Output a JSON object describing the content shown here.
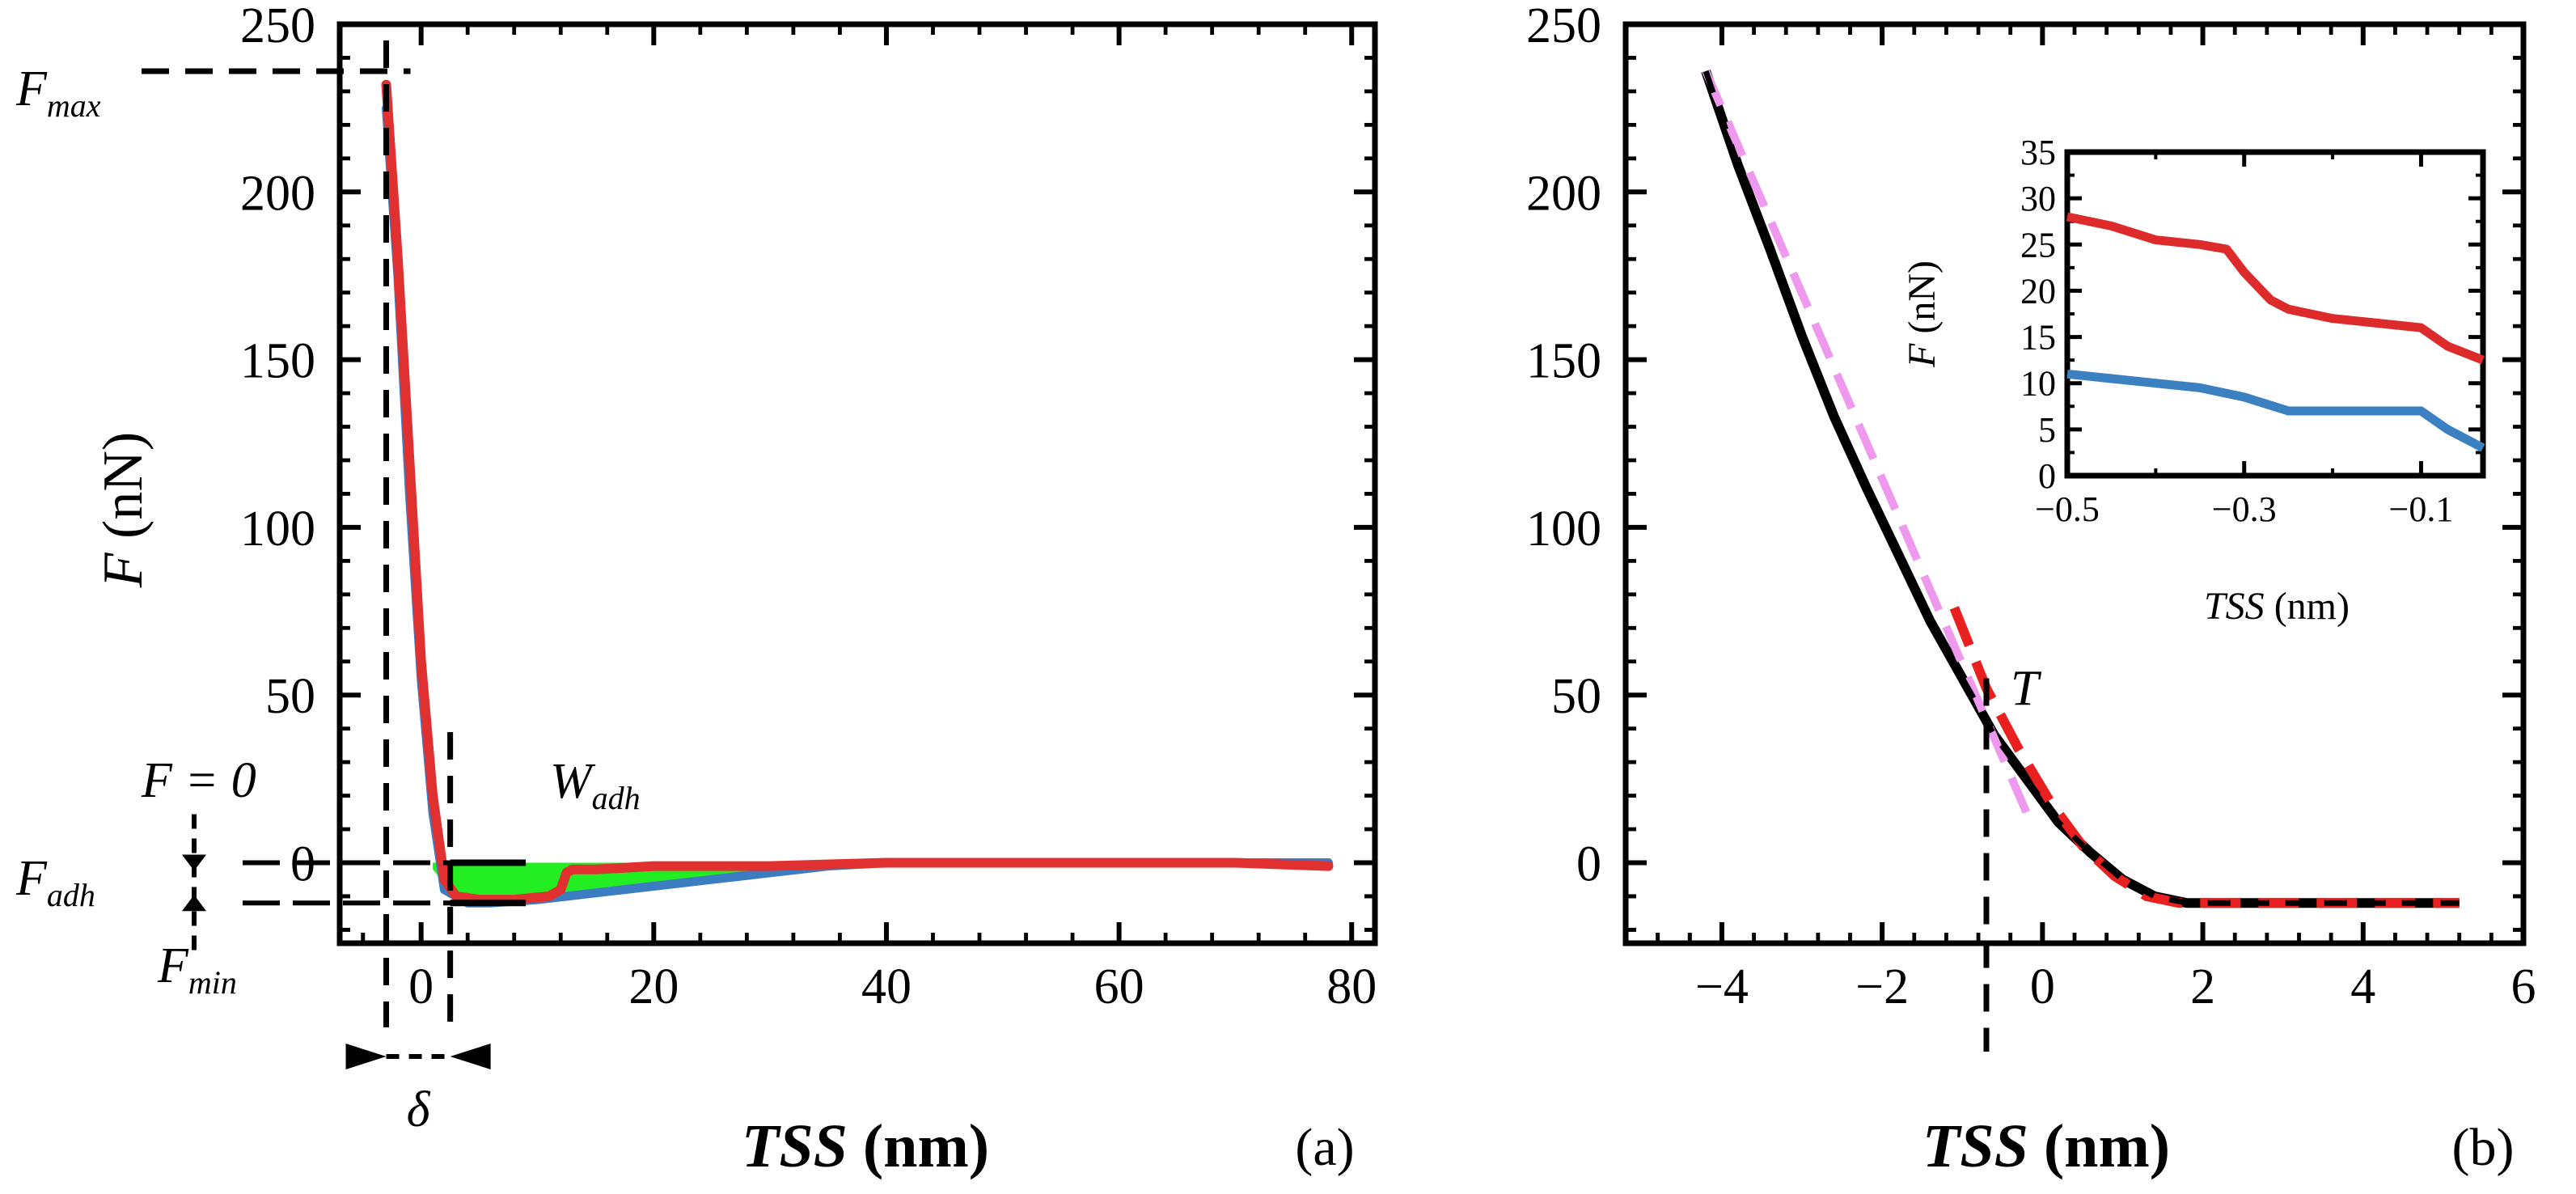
{
  "chart_data": [
    {
      "type": "line",
      "panel_label": "(a)",
      "xlabel": "TSS (nm)",
      "xlabel_parts": [
        "TSS",
        " (nm)"
      ],
      "ylabel": "F (nN)",
      "ylabel_parts": [
        "F",
        " (nN)"
      ],
      "xlim": [
        -7,
        82
      ],
      "ylim": [
        -24,
        250
      ],
      "x_ticks": [
        0,
        20,
        40,
        60,
        80
      ],
      "y_ticks": [
        0,
        50,
        100,
        150,
        200,
        250
      ],
      "series": [
        {
          "name": "approach (blue)",
          "color": "#3b7dc0",
          "x": [
            -3,
            -2,
            -1,
            0,
            1,
            2,
            4,
            6,
            10,
            15,
            20,
            25,
            30,
            35,
            40,
            50,
            60,
            70,
            78
          ],
          "y": [
            225,
            175,
            110,
            55,
            15,
            -8,
            -12,
            -12,
            -11,
            -9,
            -7,
            -5,
            -3,
            -1,
            0,
            0,
            0,
            0,
            0
          ]
        },
        {
          "name": "retract (red)",
          "color": "#e03030",
          "x": [
            -3,
            -2,
            -1,
            0,
            1,
            2,
            3,
            5,
            8,
            11,
            12,
            12.5,
            13,
            15,
            20,
            30,
            40,
            50,
            60,
            70,
            78
          ],
          "y": [
            232,
            180,
            120,
            60,
            20,
            -5,
            -10,
            -11,
            -11,
            -10,
            -8,
            -3,
            -2,
            -2,
            -1,
            -1,
            0,
            0,
            0,
            0,
            -1
          ]
        }
      ],
      "shaded_region": {
        "name": "W_adh area",
        "color": "#22ee22",
        "x": [
          1,
          3,
          6,
          10,
          15,
          20,
          25,
          30,
          35,
          38
        ],
        "y_low": [
          -2,
          -10,
          -11,
          -11,
          -8,
          -6,
          -4,
          -3,
          -1,
          0
        ]
      },
      "annotations": {
        "f_max": {
          "main": "F",
          "sub": "max",
          "y": 236
        },
        "f_adh": {
          "main": "F",
          "sub": "adh",
          "y": -12
        },
        "f_min": {
          "main": "F",
          "sub": "min"
        },
        "f_zero": "F = 0",
        "w_adh": {
          "main": "W",
          "sub": "adh"
        },
        "delta": "δ",
        "delta_x": [
          -3,
          2.5
        ]
      }
    },
    {
      "type": "line",
      "panel_label": "(b)",
      "xlabel": "TSS (nm)",
      "xlabel_parts": [
        "TSS",
        " (nm)"
      ],
      "xlim": [
        -5.2,
        6
      ],
      "ylim": [
        -24,
        250
      ],
      "x_ticks": [
        -4,
        -2,
        0,
        2,
        4,
        6
      ],
      "y_ticks": [
        0,
        50,
        100,
        150,
        200,
        250
      ],
      "series": [
        {
          "name": "measured (black)",
          "color": "#000000",
          "x": [
            -4.2,
            -3.8,
            -3.4,
            -3.0,
            -2.6,
            -2.2,
            -1.8,
            -1.4,
            -1.0,
            -0.6,
            -0.2,
            0.2,
            0.6,
            1.0,
            1.4,
            1.8,
            2.5,
            3.5,
            4.5,
            5.2
          ],
          "y": [
            236,
            208,
            183,
            157,
            133,
            112,
            92,
            72,
            55,
            38,
            25,
            12,
            3,
            -5,
            -10,
            -12,
            -12,
            -12,
            -12,
            -12
          ]
        },
        {
          "name": "linear fit (pink dashed)",
          "color": "#ee99ee",
          "x": [
            -4.2,
            -0.2
          ],
          "y": [
            236,
            15
          ]
        },
        {
          "name": "contact fit (red dashed)",
          "color": "#e82020",
          "x": [
            -1.1,
            -0.7,
            -0.3,
            0.1,
            0.5,
            0.9,
            1.3,
            1.7,
            2.5,
            3.5,
            4.5,
            5.2
          ],
          "y": [
            76,
            52,
            34,
            18,
            5,
            -4,
            -10,
            -12,
            -12,
            -12,
            -12,
            -12
          ]
        }
      ],
      "annotations": {
        "T": "T",
        "T_x": -0.7,
        "T_y": 40
      },
      "inset": {
        "xlabel": "TSS (nm)",
        "xlabel_parts": [
          "TSS",
          " (nm)"
        ],
        "ylabel": "F (nN)",
        "ylabel_parts": [
          "F",
          " (nN)"
        ],
        "xlim": [
          -0.5,
          -0.03
        ],
        "ylim": [
          0,
          35
        ],
        "x_ticks": [
          -0.5,
          -0.3,
          -0.1
        ],
        "x_tick_labels": [
          "−0.5",
          "−0.3",
          "−0.1"
        ],
        "y_ticks": [
          0,
          5,
          10,
          15,
          20,
          25,
          30,
          35
        ],
        "series": [
          {
            "name": "red",
            "color": "#dd2a2a",
            "x": [
              -0.5,
              -0.45,
              -0.4,
              -0.35,
              -0.32,
              -0.3,
              -0.27,
              -0.25,
              -0.2,
              -0.15,
              -0.1,
              -0.07,
              -0.03
            ],
            "y": [
              28,
              27,
              25.5,
              25,
              24.5,
              22,
              19,
              18,
              17,
              16.5,
              16,
              14,
              12.5
            ]
          },
          {
            "name": "blue",
            "color": "#3b80c0",
            "x": [
              -0.5,
              -0.45,
              -0.4,
              -0.35,
              -0.3,
              -0.25,
              -0.2,
              -0.15,
              -0.1,
              -0.07,
              -0.03
            ],
            "y": [
              11,
              10.5,
              10,
              9.5,
              8.5,
              7,
              7,
              7,
              7,
              5,
              3
            ]
          }
        ]
      }
    }
  ]
}
